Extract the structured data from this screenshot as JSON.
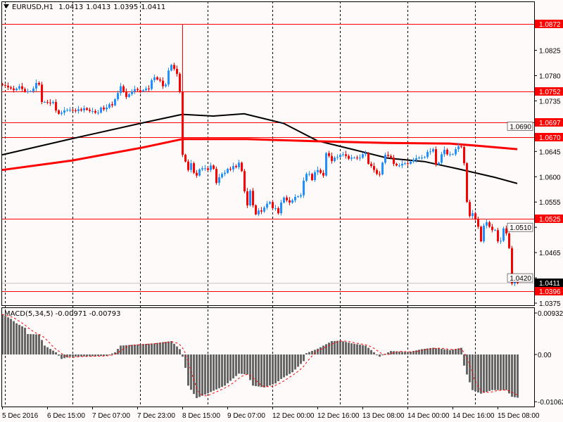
{
  "header": {
    "symbol": "EURUSD,H1",
    "open": "1.0413",
    "high": "1.0413",
    "low": "1.0395",
    "close": "1.0411"
  },
  "macd_header": {
    "label": "MACD(5,34,5)",
    "main": "-0.00971",
    "signal": "-0.00793"
  },
  "colors": {
    "background": "#fffafa",
    "bull_candle": "#1e90ff",
    "bear_candle": "#ff0000",
    "level_line": "#ff0000",
    "ma_black": "#000000",
    "ma_red": "#ff0000",
    "macd_histogram": "#666666",
    "macd_signal": "#ff0000",
    "current_price_bg": "#000000",
    "level_label_bg": "#ff0000"
  },
  "chart_data": [
    {
      "type": "candlestick",
      "symbol": "EURUSD",
      "timeframe": "H1",
      "ylim": [
        1.0375,
        1.0872
      ],
      "y_ticks": [
        "1.0825",
        "1.0780",
        "1.0735",
        "1.0690",
        "1.0645",
        "1.0600",
        "1.0555",
        "1.0510",
        "1.0465",
        "1.0420",
        "1.0375"
      ],
      "x_ticks": [
        "5 Dec 2016",
        "6 Dec 15:00",
        "7 Dec 07:00",
        "7 Dec 23:00",
        "8 Dec 15:00",
        "9 Dec 07:00",
        "12 Dec 00:00",
        "12 Dec 16:00",
        "13 Dec 08:00",
        "14 Dec 00:00",
        "14 Dec 16:00",
        "15 Dec 08:00"
      ],
      "closes": [
        1.0763,
        1.0762,
        1.0759,
        1.0757,
        1.0754,
        1.0757,
        1.0761,
        1.0756,
        1.0752,
        1.0752,
        1.0752,
        1.0757,
        1.0767,
        1.0764,
        1.0733,
        1.0733,
        1.0732,
        1.0731,
        1.0733,
        1.0718,
        1.0712,
        1.0714,
        1.0718,
        1.0719,
        1.0719,
        1.0718,
        1.0717,
        1.072,
        1.0718,
        1.0722,
        1.0719,
        1.0717,
        1.0717,
        1.0714,
        1.0714,
        1.0723,
        1.072,
        1.0723,
        1.0729,
        1.0727,
        1.0738,
        1.0749,
        1.0761,
        1.0752,
        1.0742,
        1.0747,
        1.0752,
        1.0756,
        1.0754,
        1.0752,
        1.0754,
        1.0757,
        1.0756,
        1.0772,
        1.0777,
        1.0773,
        1.0771,
        1.0761,
        1.0764,
        1.0789,
        1.0799,
        1.0792,
        1.0783,
        1.0751,
        1.0639,
        1.0627,
        1.0612,
        1.0624,
        1.0607,
        1.0602,
        1.0613,
        1.0615,
        1.0615,
        1.0612,
        1.062,
        1.0614,
        1.0589,
        1.0599,
        1.0605,
        1.0607,
        1.0614,
        1.0613,
        1.0619,
        1.0617,
        1.0625,
        1.061,
        1.0574,
        1.0549,
        1.0575,
        1.0549,
        1.0533,
        1.054,
        1.0538,
        1.0545,
        1.0552,
        1.0555,
        1.0544,
        1.0544,
        1.0535,
        1.0554,
        1.0563,
        1.0558,
        1.0554,
        1.0558,
        1.0564,
        1.0565,
        1.0567,
        1.0593,
        1.0605,
        1.0605,
        1.0594,
        1.0608,
        1.0612,
        1.0607,
        1.0602,
        1.0642,
        1.0637,
        1.0628,
        1.0634,
        1.0635,
        1.0639,
        1.064,
        1.0637,
        1.0632,
        1.0634,
        1.0634,
        1.0633,
        1.0634,
        1.064,
        1.0642,
        1.0623,
        1.0619,
        1.0612,
        1.0605,
        1.0604,
        1.0625,
        1.0639,
        1.0637,
        1.0634,
        1.0623,
        1.062,
        1.062,
        1.0623,
        1.0624,
        1.0623,
        1.0627,
        1.063,
        1.0633,
        1.0634,
        1.0634,
        1.0635,
        1.0644,
        1.0645,
        1.0649,
        1.0622,
        1.0625,
        1.064,
        1.0648,
        1.064,
        1.064,
        1.064,
        1.0649,
        1.0654,
        1.0653,
        1.0624,
        1.0555,
        1.053,
        1.0535,
        1.0524,
        1.0511,
        1.0485,
        1.0513,
        1.0519,
        1.0511,
        1.0505,
        1.0505,
        1.0485,
        1.0486,
        1.0508,
        1.0499,
        1.0473,
        1.041,
        1.0414,
        1.0411
      ],
      "spike_high": {
        "bar": 64,
        "high": 1.0872
      },
      "moving_averages": [
        {
          "color": "black",
          "points": [
            [
              0,
              1.0639
            ],
            [
              25,
              1.0668
            ],
            [
              50,
              1.0696
            ],
            [
              64,
              1.0711
            ],
            [
              75,
              1.0708
            ],
            [
              86,
              1.0712
            ],
            [
              100,
              1.0695
            ],
            [
              112,
              1.0664
            ],
            [
              125,
              1.0648
            ],
            [
              137,
              1.0633
            ],
            [
              150,
              1.0627
            ],
            [
              162,
              1.0614
            ],
            [
              175,
              1.0599
            ],
            [
              183,
              1.0588
            ]
          ]
        },
        {
          "color": "red",
          "points": [
            [
              0,
              1.0612
            ],
            [
              25,
              1.0629
            ],
            [
              50,
              1.0652
            ],
            [
              64,
              1.0667
            ],
            [
              87,
              1.0667
            ],
            [
              112,
              1.0663
            ],
            [
              137,
              1.066
            ],
            [
              159,
              1.0659
            ],
            [
              169,
              1.0655
            ],
            [
              183,
              1.0649
            ]
          ]
        }
      ],
      "horizontal_levels": [
        "1.0872",
        "1.0752",
        "1.0697",
        "1.0670",
        "1.0525",
        "1.0396"
      ],
      "current_price": "1.0411"
    },
    {
      "type": "histogram",
      "name": "MACD(5,34,5)",
      "ylim": [
        -0.01062,
        0.00932
      ],
      "y_ticks": [
        "0.00932",
        "0.00",
        "-0.01062"
      ],
      "macd_points": [
        [
          0,
          0.009
        ],
        [
          3,
          0.008
        ],
        [
          5,
          0.007
        ],
        [
          8,
          0.006
        ],
        [
          9,
          0.0046
        ],
        [
          13,
          0.0045
        ],
        [
          15,
          0.002
        ],
        [
          19,
          0.0005
        ],
        [
          21,
          -0.001
        ],
        [
          24,
          -0.0005
        ],
        [
          37,
          -0.0003
        ],
        [
          40,
          0.0005
        ],
        [
          42,
          0.002
        ],
        [
          47,
          0.0022
        ],
        [
          54,
          0.0025
        ],
        [
          60,
          0.003
        ],
        [
          63,
          0.0012
        ],
        [
          64,
          -0.0005
        ],
        [
          65,
          -0.003
        ],
        [
          66,
          -0.007
        ],
        [
          69,
          -0.0098
        ],
        [
          72,
          -0.009
        ],
        [
          79,
          -0.007
        ],
        [
          84,
          -0.0043
        ],
        [
          87,
          -0.0045
        ],
        [
          89,
          -0.007
        ],
        [
          93,
          -0.0074
        ],
        [
          97,
          -0.0065
        ],
        [
          99,
          -0.0055
        ],
        [
          103,
          -0.004
        ],
        [
          107,
          -0.0015
        ],
        [
          108,
          0.0003
        ],
        [
          112,
          0.0013
        ],
        [
          117,
          0.003
        ],
        [
          120,
          0.0031
        ],
        [
          124,
          0.0025
        ],
        [
          129,
          0.002
        ],
        [
          132,
          0.0005
        ],
        [
          134,
          -0.0005
        ],
        [
          138,
          0.0008
        ],
        [
          144,
          0.0005
        ],
        [
          149,
          0.0012
        ],
        [
          153,
          0.0015
        ],
        [
          159,
          0.001
        ],
        [
          163,
          0.0015
        ],
        [
          164,
          -0.0025
        ],
        [
          165,
          -0.0045
        ],
        [
          167,
          -0.008
        ],
        [
          170,
          -0.0088
        ],
        [
          174,
          -0.008
        ],
        [
          179,
          -0.008
        ],
        [
          181,
          -0.0095
        ],
        [
          183,
          -0.0097
        ]
      ]
    }
  ]
}
